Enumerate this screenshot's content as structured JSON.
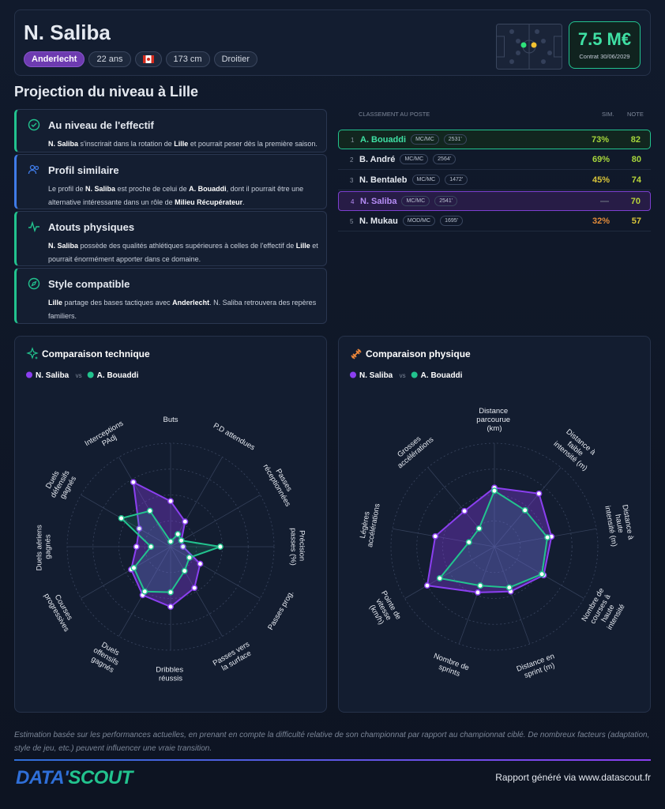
{
  "header": {
    "name": "N. Saliba",
    "tags": [
      "Anderlecht",
      "22 ans",
      "173 cm",
      "Droitier"
    ],
    "value": "7.5 M€",
    "contract": "Contrat 30/06/2029"
  },
  "section_title": "Projection du niveau à Lille",
  "insights": [
    {
      "title": "Au niveau de l'effectif",
      "text": [
        {
          "b": "N. Saliba"
        },
        " s'inscrirait dans la rotation de ",
        {
          "b": "Lille"
        },
        " et pourrait peser dès la première saison."
      ]
    },
    {
      "title": "Profil similaire",
      "text": [
        "Le profil de ",
        {
          "b": "N. Saliba"
        },
        " est proche de celui de ",
        {
          "b": "A. Bouaddi"
        },
        ", dont il pourrait être une alternative intéressante dans un rôle de ",
        {
          "b": "Milieu Récupérateur"
        },
        "."
      ]
    },
    {
      "title": "Atouts physiques",
      "text": [
        {
          "b": "N. Saliba"
        },
        " possède des qualités athlétiques supérieures à celles de l'effectif de ",
        {
          "b": "Lille"
        },
        " et pourrait énormément apporter dans ce domaine."
      ]
    },
    {
      "title": "Style compatible",
      "text": [
        {
          "b": "Lille"
        },
        " partage des bases tactiques avec ",
        {
          "b": "Anderlecht"
        },
        ". N. Saliba retrouvera des repères familiers."
      ]
    }
  ],
  "ranking": {
    "title": "CLASSEMENT AU POSTE",
    "columns": [
      "SIM.",
      "NOTE"
    ],
    "rows": [
      {
        "rank": 1,
        "name": "A. Bouaddi",
        "position": "MC/MC",
        "minutes": "2531'",
        "sim": "73%",
        "note": 82,
        "sim_color": "#a6d63c",
        "note_color": "#a6d63c"
      },
      {
        "rank": 2,
        "name": "B. André",
        "position": "MC/MC",
        "minutes": "2564'",
        "sim": "69%",
        "note": 80,
        "sim_color": "#a6d63c",
        "note_color": "#a6d63c"
      },
      {
        "rank": 3,
        "name": "N. Bentaleb",
        "position": "MC/MC",
        "minutes": "1472'",
        "sim": "45%",
        "note": 74,
        "sim_color": "#d8c43a",
        "note_color": "#b8d43a"
      },
      {
        "rank": 4,
        "name": "N. Saliba",
        "position": "MC/MC",
        "minutes": "2541'",
        "sim": "—",
        "note": 70,
        "sim_color": "#6b7280",
        "note_color": "#b8d43a"
      },
      {
        "rank": 5,
        "name": "N. Mukau",
        "position": "MOD/MC",
        "minutes": "1695'",
        "sim": "32%",
        "note": 57,
        "sim_color": "#e08a3a",
        "note_color": "#d8c43a"
      }
    ]
  },
  "chart_data": [
    {
      "type": "radar",
      "title": "Comparaison technique",
      "vs": "vs",
      "categories": [
        "Buts",
        "P.D attendues",
        "Passes réceptionnées",
        "Précision passes (%)",
        "Passes prog.",
        "Passes vers la surface",
        "Dribbles réussis",
        "Duels offensifs gagnés",
        "Courses progressives",
        "Duels aériens gagnés",
        "Duels défensifs gagnés",
        "Interceptions PAdj"
      ],
      "rlim": [
        0,
        100
      ],
      "rticks": [
        25,
        50,
        75,
        100
      ],
      "series": [
        {
          "name": "N. Saliba",
          "color": "#8b3ff0",
          "values": [
            44,
            28,
            12,
            12,
            33,
            46,
            58,
            54,
            44,
            33,
            35,
            72
          ]
        },
        {
          "name": "A. Bouaddi",
          "color": "#22c38e",
          "values": [
            5,
            14,
            12,
            48,
            21,
            27,
            44,
            50,
            41,
            19,
            55,
            40
          ]
        }
      ]
    },
    {
      "type": "radar",
      "title": "Comparaison physique",
      "vs": "vs",
      "categories": [
        "Distance parcourue (km)",
        "Distance à faible intensité (m)",
        "Distance à haute intensité (m)",
        "Nombre de courses à haute intensité",
        "Distance en sprint (m)",
        "Nombre de sprints",
        "Pointe de vitesse (km/h)",
        "Légères accélérations",
        "Grosses accélérations"
      ],
      "rlim": [
        0,
        100
      ],
      "rticks": [
        25,
        50,
        75,
        100
      ],
      "series": [
        {
          "name": "N. Saliba",
          "color": "#8b3ff0",
          "values": [
            57,
            67,
            56,
            55,
            46,
            47,
            75,
            58,
            45
          ]
        },
        {
          "name": "A. Bouaddi",
          "color": "#22c38e",
          "values": [
            54,
            46,
            52,
            53,
            42,
            40,
            61,
            25,
            23
          ]
        }
      ]
    }
  ],
  "footer": {
    "disclaimer": "Estimation basée sur les performances actuelles, en prenant en compte la difficulté relative de son championnat par rapport au championnat ciblé. De nombreux facteurs (adaptation, style de jeu, etc.) peuvent influencer une vraie transition.",
    "logo": [
      "DATA'",
      "SCOUT"
    ],
    "report": "Rapport généré via www.datascout.fr"
  }
}
